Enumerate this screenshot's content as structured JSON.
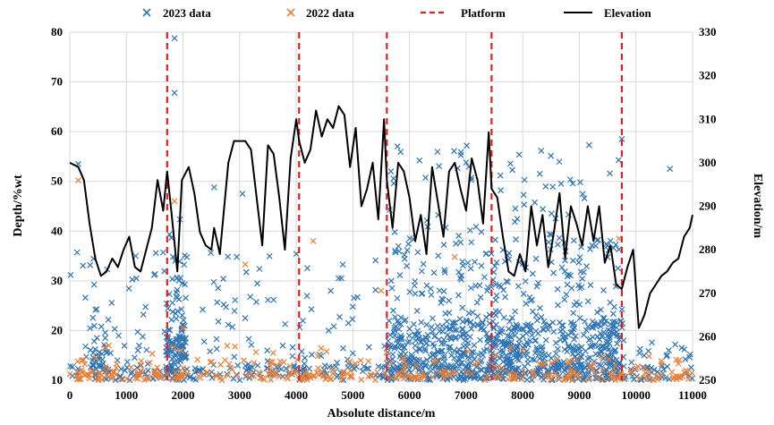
{
  "chart_data": {
    "type": "scatter",
    "title": "",
    "xlabel": "Absolute distance/m",
    "ylabel": "Depth/%wt",
    "y2label": "Elevation/m",
    "xlim": [
      0,
      11000
    ],
    "ylim": [
      10,
      80
    ],
    "y2lim": [
      250,
      330
    ],
    "xticks": [
      "0",
      "1000",
      "2000",
      "3000",
      "4000",
      "5000",
      "6000",
      "7000",
      "8000",
      "9000",
      "10000",
      "11000"
    ],
    "yticks": [
      "10",
      "20",
      "30",
      "40",
      "50",
      "60",
      "70",
      "80"
    ],
    "y2ticks": [
      "250",
      "260",
      "270",
      "280",
      "290",
      "300",
      "310",
      "320",
      "330"
    ],
    "legend_position": "top",
    "legend": [
      {
        "label": "2023 data",
        "marker": "x",
        "color": "#2E75B6"
      },
      {
        "label": "2022 data",
        "marker": "x",
        "color": "#ED7D31"
      },
      {
        "label": "Platform",
        "style": "dashed",
        "color": "#E02020"
      },
      {
        "label": "Elevation",
        "style": "solid",
        "color": "#000000"
      }
    ],
    "platforms_x": [
      1720,
      4050,
      5600,
      7450,
      9750
    ],
    "colors": {
      "series_2023": "#2E75B6",
      "series_2022": "#ED7D31",
      "platform": "#E02020",
      "elevation": "#000000"
    },
    "series": [
      {
        "name": "Elevation",
        "axis": "right",
        "x": [
          0,
          150,
          250,
          350,
          450,
          550,
          650,
          750,
          850,
          950,
          1050,
          1150,
          1250,
          1350,
          1450,
          1550,
          1650,
          1720,
          1800,
          1900,
          1980,
          2100,
          2200,
          2300,
          2400,
          2500,
          2550,
          2650,
          2800,
          2900,
          3000,
          3100,
          3200,
          3300,
          3400,
          3500,
          3600,
          3700,
          3800,
          3900,
          4000,
          4050,
          4150,
          4250,
          4350,
          4450,
          4550,
          4650,
          4750,
          4850,
          4950,
          5050,
          5150,
          5250,
          5350,
          5450,
          5550,
          5600,
          5700,
          5800,
          5900,
          6000,
          6100,
          6200,
          6300,
          6400,
          6500,
          6600,
          6700,
          6800,
          6900,
          7000,
          7100,
          7200,
          7300,
          7400,
          7450,
          7550,
          7650,
          7750,
          7850,
          7950,
          8050,
          8150,
          8250,
          8350,
          8450,
          8550,
          8650,
          8750,
          8850,
          8950,
          9050,
          9150,
          9250,
          9350,
          9450,
          9550,
          9650,
          9750,
          9850,
          9950,
          10050,
          10150,
          10250,
          10350,
          10450,
          10550,
          10650,
          10750,
          10850,
          10950,
          11000
        ],
        "values": [
          300,
          299,
          296,
          286,
          278,
          274,
          275,
          278,
          276,
          280,
          283,
          276,
          275,
          280,
          285,
          296,
          289,
          298,
          288,
          275,
          296,
          299,
          293,
          284,
          281,
          280,
          285,
          279,
          300,
          305,
          305,
          305,
          303,
          292,
          281,
          304,
          302,
          292,
          280,
          301,
          310,
          305,
          300,
          303,
          312,
          306,
          310,
          308,
          313,
          311,
          299,
          308,
          290,
          294,
          300,
          287,
          310,
          296,
          285,
          300,
          298,
          292,
          282,
          288,
          279,
          299,
          291,
          283,
          298,
          300,
          294,
          289,
          301,
          296,
          286,
          307,
          294,
          292,
          283,
          275,
          274,
          279,
          275,
          290,
          281,
          288,
          276,
          284,
          293,
          278,
          290,
          286,
          281,
          290,
          282,
          290,
          277,
          281,
          272,
          271,
          276,
          280,
          262,
          265,
          270,
          272,
          274,
          275,
          277,
          278,
          283,
          285,
          288
        ]
      },
      {
        "name": "2023 data",
        "axis": "left",
        "summary": "Several thousand depth measurements along the route, mostly 10-20 %wt with dense vertical streaks up to ~58 %wt between 5500 and 9800 m; isolated maxima 78.8 %wt and 67.8 %wt near 1850 m."
      },
      {
        "name": "2022 data",
        "axis": "left",
        "summary": "Depth measurements mostly 10-18 %wt along the whole route, with scattered values up to ~50 %wt."
      }
    ]
  }
}
